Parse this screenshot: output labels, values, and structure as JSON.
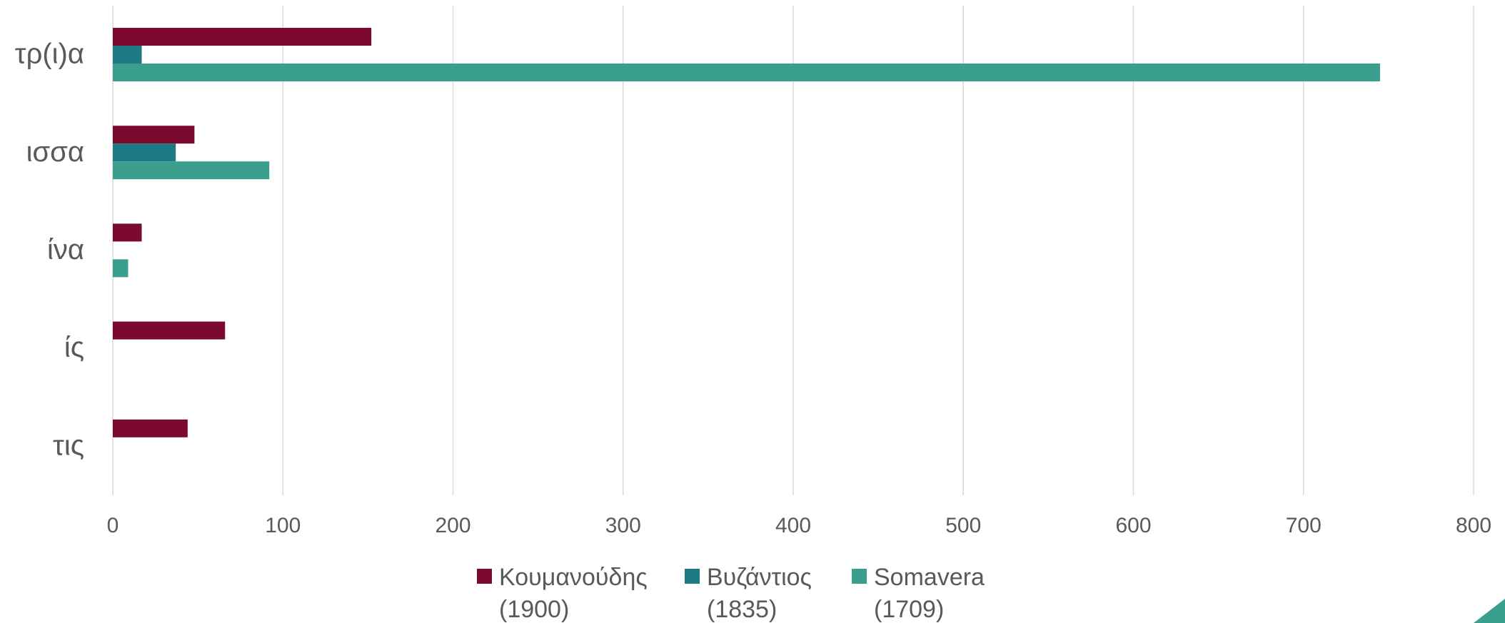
{
  "chart_data": {
    "type": "bar",
    "orientation": "horizontal",
    "categories": [
      "τρ(ι)α",
      "ισσα",
      "ίνα",
      "ίς",
      "τις"
    ],
    "series": [
      {
        "name": "Κουμανούδης (1900)",
        "label_lines": [
          "Κουμανούδης",
          "(1900)"
        ],
        "color": "#7b0a2e",
        "values": [
          152,
          48,
          17,
          66,
          44
        ]
      },
      {
        "name": "Βυζάντιος (1835)",
        "label_lines": [
          "Βυζάντιος",
          "(1835)"
        ],
        "color": "#1c7a87",
        "values": [
          17,
          37,
          0,
          0,
          0
        ]
      },
      {
        "name": "Somavera (1709)",
        "label_lines": [
          "Somavera",
          "(1709)"
        ],
        "color": "#3a9e8f",
        "values": [
          745,
          92,
          9,
          0,
          0
        ]
      }
    ],
    "xlim": [
      0,
      800
    ],
    "x_ticks": [
      0,
      100,
      200,
      300,
      400,
      500,
      600,
      700,
      800
    ],
    "tick_labels": [
      "0",
      "100",
      "200",
      "300",
      "400",
      "500",
      "600",
      "700",
      "800"
    ],
    "grid": true,
    "legend_position": "bottom"
  }
}
